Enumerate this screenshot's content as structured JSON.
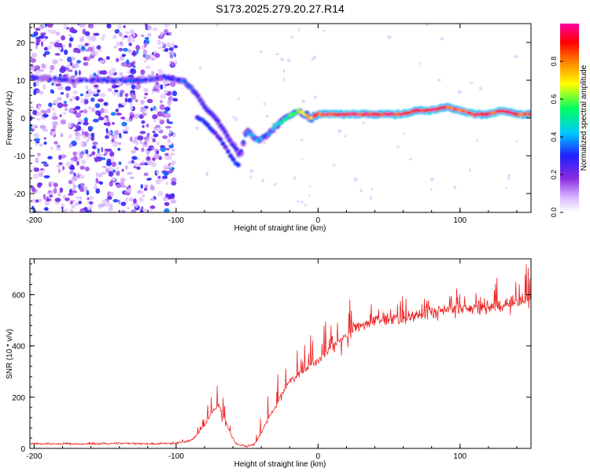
{
  "title": "S173.2025.279.20.27.R14",
  "chart_data": [
    {
      "type": "heatmap",
      "xlabel": "Height of straight line (km)",
      "ylabel": "Frequency (Hz)",
      "xlim": [
        -203,
        150
      ],
      "ylim": [
        -25,
        25
      ],
      "x_ticks": [
        -200,
        -100,
        0,
        100
      ],
      "x_tick_labels": [
        "-200",
        "-100",
        "0",
        "100"
      ],
      "y_ticks": [
        -20,
        -10,
        0,
        10,
        20
      ],
      "y_tick_labels": [
        "-20",
        "-10",
        "0",
        "10",
        "20"
      ],
      "colorbar": {
        "label": "Normalized spectral amplitude",
        "range": [
          0,
          1
        ],
        "ticks": [
          0.0,
          0.2,
          0.4,
          0.6,
          0.8
        ],
        "tick_labels": [
          "0.0",
          "0.2",
          "0.4",
          "0.6",
          "0.8"
        ],
        "colors": [
          "#ffffff",
          "#d9b8ff",
          "#8a2be2",
          "#2020ff",
          "#00c8ff",
          "#00ff60",
          "#ffff00",
          "#ff8000",
          "#ff0000",
          "#ff00a0"
        ]
      },
      "noise_region_x": [
        -203,
        -100
      ],
      "ridge": {
        "x": [
          -203,
          -180,
          -160,
          -140,
          -120,
          -108,
          -100,
          -95,
          -90,
          -85,
          -80,
          -75,
          -70,
          -65,
          -60,
          -55,
          -50,
          -46,
          -42,
          -38,
          -34,
          -30,
          -26,
          -22,
          -18,
          -14,
          -10,
          -5,
          0,
          20,
          40,
          60,
          70,
          80,
          90,
          100,
          110,
          120,
          130,
          140,
          150
        ],
        "y": [
          11,
          10,
          10,
          10,
          10,
          11,
          10,
          10,
          8,
          6,
          3,
          1,
          -1,
          -4,
          -7,
          -10,
          -3,
          -5,
          -6,
          -5,
          -4,
          -2,
          -1,
          0,
          1,
          2,
          1,
          0,
          1,
          1,
          1,
          1,
          2,
          2,
          3,
          2,
          1,
          1,
          2,
          1,
          1
        ],
        "amplitude": [
          0.3,
          0.3,
          0.3,
          0.35,
          0.3,
          0.35,
          0.3,
          0.35,
          0.35,
          0.3,
          0.3,
          0.3,
          0.3,
          0.3,
          0.3,
          0.3,
          0.35,
          0.4,
          0.4,
          0.35,
          0.35,
          0.45,
          0.5,
          0.55,
          0.6,
          0.65,
          0.7,
          0.8,
          0.9,
          0.95,
          0.9,
          0.95,
          0.9,
          0.95,
          0.9,
          0.9,
          0.95,
          0.9,
          0.95,
          0.9,
          0.9
        ]
      },
      "branch": {
        "x": [
          -85,
          -80,
          -75,
          -70,
          -65,
          -60,
          -55
        ],
        "y": [
          0,
          -1,
          -3,
          -5,
          -8,
          -11,
          -13
        ]
      }
    },
    {
      "type": "line",
      "xlabel": "Height of straight line (km)",
      "ylabel": "SNR (10 * v/v)",
      "xlim": [
        -203,
        150
      ],
      "ylim": [
        0,
        740
      ],
      "x_ticks": [
        -200,
        -100,
        0,
        100
      ],
      "x_tick_labels": [
        "-200",
        "-100",
        "0",
        "100"
      ],
      "y_ticks": [
        0,
        200,
        400,
        600
      ],
      "y_tick_labels": [
        "0",
        "200",
        "400",
        "600"
      ],
      "color": "#ee2222",
      "x": [
        -203,
        -180,
        -160,
        -140,
        -120,
        -100,
        -90,
        -85,
        -80,
        -75,
        -70,
        -66,
        -62,
        -58,
        -54,
        -50,
        -45,
        -40,
        -35,
        -30,
        -25,
        -20,
        -15,
        -10,
        -5,
        0,
        5,
        10,
        15,
        20,
        25,
        30,
        35,
        40,
        50,
        60,
        70,
        80,
        90,
        100,
        110,
        120,
        130,
        140,
        150
      ],
      "y": [
        18,
        18,
        18,
        20,
        18,
        20,
        30,
        55,
        90,
        140,
        170,
        120,
        60,
        20,
        10,
        8,
        15,
        60,
        120,
        160,
        220,
        260,
        280,
        300,
        330,
        340,
        370,
        390,
        420,
        450,
        470,
        480,
        490,
        500,
        500,
        510,
        520,
        530,
        540,
        545,
        550,
        555,
        560,
        570,
        580
      ],
      "spikes": [
        0,
        0,
        0,
        0,
        0,
        5,
        10,
        20,
        40,
        70,
        90,
        60,
        30,
        10,
        5,
        5,
        10,
        60,
        90,
        100,
        100,
        100,
        100,
        100,
        100,
        100,
        110,
        120,
        130,
        120,
        100,
        80,
        70,
        70,
        60,
        60,
        60,
        70,
        80,
        90,
        100,
        100,
        110,
        120,
        120
      ]
    }
  ]
}
